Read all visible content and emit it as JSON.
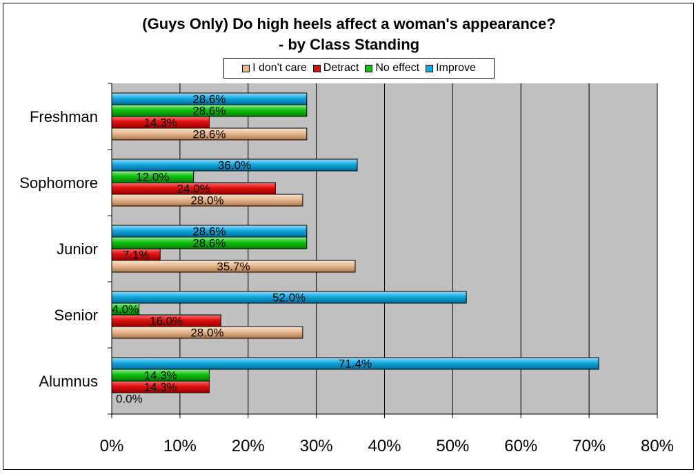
{
  "chart_data": {
    "type": "bar",
    "orientation": "horizontal",
    "title_lines": [
      "(Guys Only) Do high heels affect a woman's appearance?",
      "- by Class Standing"
    ],
    "categories": [
      "Freshman",
      "Sophomore",
      "Junior",
      "Senior",
      "Alumnus"
    ],
    "series": [
      {
        "name": "I don't care",
        "color": "#e8b88c",
        "values": [
          28.6,
          28.0,
          35.7,
          28.0,
          0.0
        ],
        "labels": [
          "28.6%",
          "28.0%",
          "35.7%",
          "28.0%",
          "0.0%"
        ]
      },
      {
        "name": "Detract",
        "color": "#e01010",
        "values": [
          14.3,
          24.0,
          7.1,
          16.0,
          14.3
        ],
        "labels": [
          "14.3%",
          "24.0%",
          "7.1%",
          "16.0%",
          "14.3%"
        ]
      },
      {
        "name": "No effect",
        "color": "#10c010",
        "values": [
          28.6,
          12.0,
          28.6,
          4.0,
          14.3
        ],
        "labels": [
          "28.6%",
          "12.0%",
          "28.6%",
          "4.0%",
          "14.3%"
        ]
      },
      {
        "name": "Improve",
        "color": "#10a8e0",
        "values": [
          28.6,
          36.0,
          28.6,
          52.0,
          71.4
        ],
        "labels": [
          "28.6%",
          "36.0%",
          "28.6%",
          "52.0%",
          "71.4%"
        ]
      }
    ],
    "xlim": [
      0,
      80
    ],
    "x_ticks": [
      "0%",
      "10%",
      "20%",
      "30%",
      "40%",
      "50%",
      "60%",
      "70%",
      "80%"
    ],
    "grid": true,
    "legend_position": "top",
    "plot_background": "#c0c0c0"
  }
}
